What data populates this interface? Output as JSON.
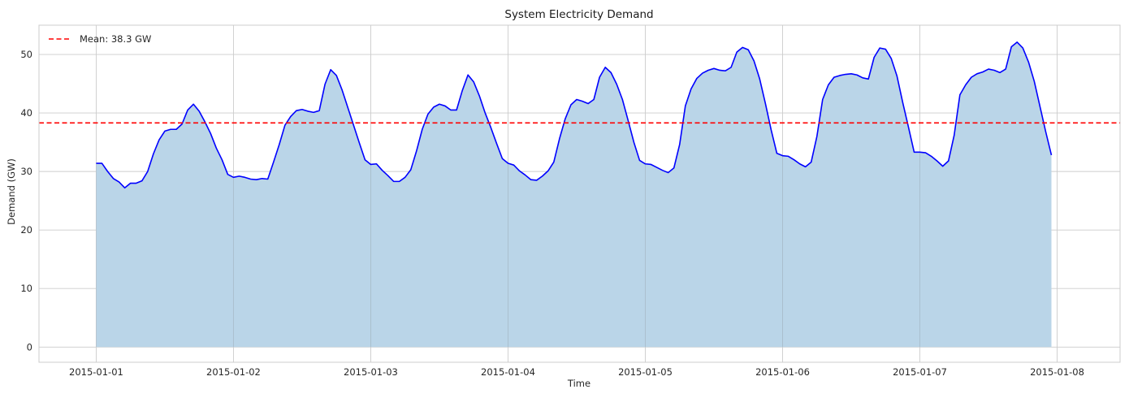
{
  "chart_data": {
    "type": "area",
    "title": "System Electricity Demand",
    "xlabel": "Time",
    "ylabel": "Demand (GW)",
    "x_start": "2015-01-01 00:00",
    "x_step_hours": 1,
    "x_ticks": [
      "2015-01-01",
      "2015-01-02",
      "2015-01-03",
      "2015-01-04",
      "2015-01-05",
      "2015-01-06",
      "2015-01-07",
      "2015-01-08"
    ],
    "y_ticks": [
      0,
      10,
      20,
      30,
      40,
      50
    ],
    "xlim": [
      "2014-12-31 14:00",
      "2015-01-08 11:00"
    ],
    "ylim": [
      -2.6,
      55
    ],
    "grid": true,
    "legend_position": "top-left",
    "series": [
      {
        "name": "",
        "color": "#0000ff",
        "fill_color": "#bad5e8",
        "values": [
          31.4,
          31.4,
          30.0,
          28.8,
          28.2,
          27.2,
          28.0,
          28.0,
          28.4,
          30.0,
          33.0,
          35.4,
          36.9,
          37.2,
          37.2,
          38.1,
          40.5,
          41.5,
          40.3,
          38.5,
          36.5,
          34.0,
          32.0,
          29.5,
          29.0,
          29.2,
          29.0,
          28.7,
          28.6,
          28.8,
          28.7,
          31.6,
          34.6,
          37.9,
          39.4,
          40.4,
          40.6,
          40.3,
          40.1,
          40.4,
          44.9,
          47.4,
          46.4,
          43.9,
          40.9,
          37.9,
          34.9,
          32.0,
          31.2,
          31.3,
          30.2,
          29.3,
          28.3,
          28.3,
          29.0,
          30.3,
          33.5,
          37.2,
          39.8,
          41.0,
          41.5,
          41.2,
          40.5,
          40.5,
          43.8,
          46.5,
          45.3,
          42.9,
          40.0,
          37.5,
          34.8,
          32.2,
          31.4,
          31.1,
          30.1,
          29.4,
          28.6,
          28.5,
          29.2,
          30.1,
          31.6,
          35.6,
          39.0,
          41.4,
          42.3,
          42.0,
          41.6,
          42.3,
          46.1,
          47.8,
          46.9,
          44.9,
          42.3,
          38.7,
          35.0,
          31.9,
          31.3,
          31.2,
          30.7,
          30.2,
          29.8,
          30.6,
          34.6,
          41.2,
          44.1,
          45.9,
          46.8,
          47.3,
          47.6,
          47.3,
          47.2,
          47.8,
          50.4,
          51.2,
          50.8,
          48.9,
          45.8,
          41.6,
          37.1,
          33.1,
          32.7,
          32.6,
          32.0,
          31.3,
          30.8,
          31.6,
          36.0,
          42.3,
          44.8,
          46.1,
          46.4,
          46.6,
          46.7,
          46.5,
          46.0,
          45.8,
          49.5,
          51.1,
          50.9,
          49.3,
          46.3,
          41.8,
          37.6,
          33.3,
          33.3,
          33.2,
          32.6,
          31.8,
          30.9,
          31.8,
          36.2,
          43.1,
          44.8,
          46.1,
          46.7,
          47.0,
          47.5,
          47.3,
          46.9,
          47.5,
          51.3,
          52.1,
          51.1,
          48.7,
          45.4,
          41.1,
          36.8,
          32.8
        ]
      }
    ],
    "reference_lines": [
      {
        "label": "Mean: 38.3 GW",
        "value": 38.3,
        "color": "#ff0000",
        "style": "dashed"
      }
    ]
  }
}
